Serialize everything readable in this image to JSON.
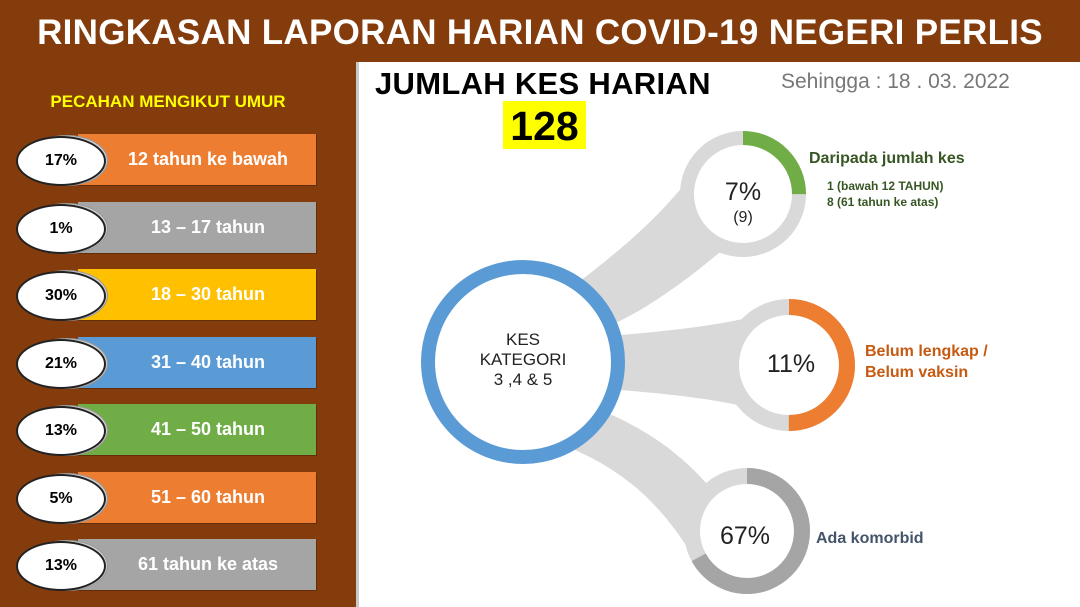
{
  "header": {
    "title": "RINGKASAN LAPORAN HARIAN COVID-19 NEGERI PERLIS"
  },
  "sidebar": {
    "title": "PECAHAN MENGIKUT UMUR",
    "rows": [
      {
        "percent": "17%",
        "label": "12 tahun ke bawah",
        "color": "#ED7D31"
      },
      {
        "percent": "1%",
        "label": "13 – 17 tahun",
        "color": "#A5A5A5"
      },
      {
        "percent": "30%",
        "label": "18 – 30 tahun",
        "color": "#FFC000"
      },
      {
        "percent": "21%",
        "label": "31 – 40 tahun",
        "color": "#5B9BD5"
      },
      {
        "percent": "13%",
        "label": "41 – 50 tahun",
        "color": "#70AD47"
      },
      {
        "percent": "5%",
        "label": "51 – 60 tahun",
        "color": "#ED7D31"
      },
      {
        "percent": "13%",
        "label": "61 tahun ke atas",
        "color": "#A5A5A5"
      }
    ]
  },
  "main": {
    "title": "JUMLAH KES HARIAN",
    "count": "128",
    "date": "Sehingga : 18 . 03. 2022",
    "center": {
      "line1": "KES",
      "line2": "KATEGORI",
      "line3": "3 ,4 & 5",
      "color": "#5B9BD5"
    },
    "rings": [
      {
        "percent_text": "7%",
        "sub": "(9)",
        "value": 7,
        "color": "#70AD47",
        "label": "Daripada jumlah kes",
        "note1": "1 (bawah 12 TAHUN)",
        "note2": "8 (61 tahun ke atas)",
        "label_color": "#375623"
      },
      {
        "percent_text": "11%",
        "value": 11,
        "color": "#ED7D31",
        "label_line1": "Belum lengkap /",
        "label_line2": "Belum vaksin",
        "label_color": "#C55A11"
      },
      {
        "percent_text": "67%",
        "value": 67,
        "color": "#A5A5A5",
        "label": "Ada komorbid",
        "label_color": "#44546A"
      }
    ]
  }
}
